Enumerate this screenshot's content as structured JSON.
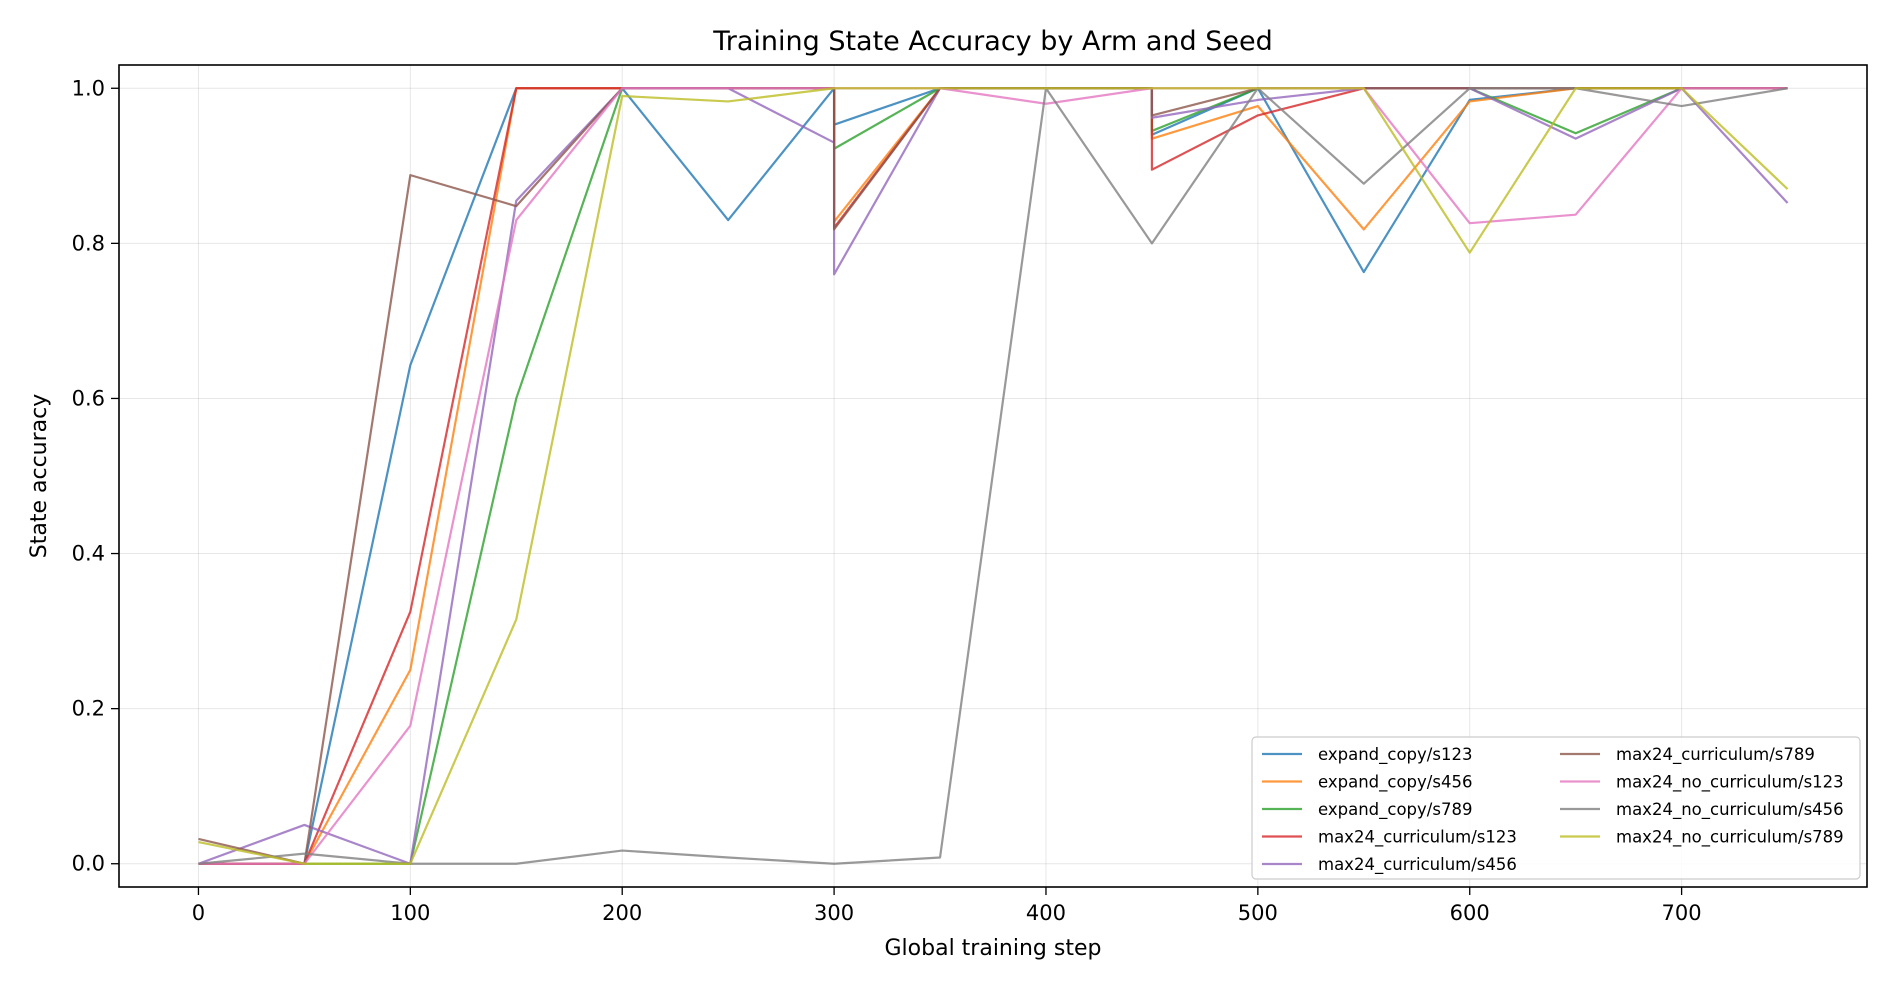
{
  "chart_data": {
    "type": "line",
    "title": "Training State Accuracy by Arm and Seed",
    "xlabel": "Global training step",
    "ylabel": "State accuracy",
    "xlim": [
      -37.5,
      787.5
    ],
    "ylim": [
      -0.03,
      1.03
    ],
    "xticks": [
      0,
      100,
      200,
      300,
      400,
      500,
      600,
      700
    ],
    "xtick_labels": [
      "0",
      "100",
      "200",
      "300",
      "400",
      "500",
      "600",
      "700"
    ],
    "yticks": [
      0.0,
      0.2,
      0.4,
      0.6,
      0.8,
      1.0
    ],
    "ytick_labels": [
      "0.0",
      "0.2",
      "0.4",
      "0.6",
      "0.8",
      "1.0"
    ],
    "grid": true,
    "legend_position": "lower-right",
    "legend_columns": 2,
    "series": [
      {
        "name": "expand_copy/s123",
        "color": "#1f77b4",
        "x": [
          0,
          50,
          100,
          150,
          200,
          250,
          300,
          300,
          350,
          400,
          450,
          450,
          500,
          550,
          600,
          650,
          700,
          750
        ],
        "y": [
          0.0,
          0.0,
          0.643,
          1.0,
          1.0,
          0.83,
          1.0,
          0.953,
          1.0,
          1.0,
          1.0,
          0.94,
          1.0,
          0.763,
          0.985,
          1.0,
          1.0,
          1.0
        ]
      },
      {
        "name": "expand_copy/s456",
        "color": "#ff7f0e",
        "x": [
          0,
          50,
          100,
          150,
          200,
          250,
          300,
          300,
          350,
          400,
          450,
          450,
          500,
          550,
          600,
          650,
          700,
          750
        ],
        "y": [
          0.0,
          0.0,
          0.25,
          1.0,
          1.0,
          1.0,
          1.0,
          0.828,
          1.0,
          1.0,
          1.0,
          0.935,
          0.977,
          0.818,
          0.983,
          1.0,
          1.0,
          1.0
        ]
      },
      {
        "name": "expand_copy/s789",
        "color": "#2ca02c",
        "x": [
          0,
          50,
          100,
          150,
          200,
          250,
          300,
          300,
          350,
          400,
          450,
          450,
          500,
          550,
          600,
          650,
          700,
          750
        ],
        "y": [
          0.0,
          0.0,
          0.0,
          0.6,
          1.0,
          1.0,
          1.0,
          0.922,
          1.0,
          1.0,
          1.0,
          0.945,
          1.0,
          1.0,
          1.0,
          0.942,
          1.0,
          1.0
        ]
      },
      {
        "name": "max24_curriculum/s123",
        "color": "#d62728",
        "x": [
          0,
          50,
          100,
          150,
          200,
          250,
          300,
          300,
          350,
          400,
          450,
          450,
          500,
          550,
          600,
          650,
          700,
          750
        ],
        "y": [
          0.0,
          0.0,
          0.325,
          1.0,
          1.0,
          1.0,
          1.0,
          0.82,
          1.0,
          1.0,
          1.0,
          0.895,
          0.965,
          1.0,
          1.0,
          1.0,
          1.0,
          1.0
        ]
      },
      {
        "name": "max24_curriculum/s456",
        "color": "#9467bd",
        "x": [
          0,
          50,
          100,
          150,
          200,
          250,
          300,
          300,
          350,
          400,
          450,
          450,
          500,
          550,
          600,
          650,
          700,
          750
        ],
        "y": [
          0.0,
          0.05,
          0.0,
          0.855,
          1.0,
          1.0,
          0.93,
          0.76,
          1.0,
          1.0,
          1.0,
          0.962,
          0.985,
          1.0,
          1.0,
          0.935,
          1.0,
          0.852
        ]
      },
      {
        "name": "max24_curriculum/s789",
        "color": "#8c564b",
        "x": [
          0,
          50,
          100,
          150,
          200,
          250,
          300,
          300,
          350,
          400,
          450,
          450,
          500,
          550,
          600,
          650,
          700,
          750
        ],
        "y": [
          0.032,
          0.0,
          0.888,
          0.848,
          1.0,
          1.0,
          1.0,
          0.818,
          1.0,
          1.0,
          1.0,
          0.965,
          1.0,
          1.0,
          1.0,
          1.0,
          1.0,
          1.0
        ]
      },
      {
        "name": "max24_no_curriculum/s123",
        "color": "#e377c2",
        "x": [
          0,
          50,
          100,
          150,
          200,
          250,
          300,
          350,
          400,
          450,
          500,
          550,
          600,
          650,
          700,
          750
        ],
        "y": [
          0.0,
          0.0,
          0.178,
          0.83,
          1.0,
          1.0,
          1.0,
          1.0,
          0.98,
          1.0,
          1.0,
          1.0,
          0.826,
          0.837,
          1.0,
          1.0
        ]
      },
      {
        "name": "max24_no_curriculum/s456",
        "color": "#7f7f7f",
        "x": [
          0,
          50,
          100,
          150,
          200,
          250,
          300,
          350,
          400,
          450,
          500,
          550,
          600,
          650,
          700,
          750
        ],
        "y": [
          0.0,
          0.013,
          0.0,
          0.0,
          0.017,
          0.008,
          0.0,
          0.008,
          1.0,
          0.8,
          1.0,
          0.877,
          1.0,
          1.0,
          0.977,
          1.0
        ]
      },
      {
        "name": "max24_no_curriculum/s789",
        "color": "#bcbd22",
        "x": [
          0,
          50,
          100,
          150,
          200,
          250,
          300,
          350,
          400,
          450,
          500,
          550,
          600,
          650,
          700,
          750
        ],
        "y": [
          0.028,
          0.0,
          0.0,
          0.315,
          0.99,
          0.983,
          1.0,
          1.0,
          1.0,
          1.0,
          1.0,
          1.0,
          0.788,
          1.0,
          1.0,
          0.87
        ]
      }
    ]
  }
}
